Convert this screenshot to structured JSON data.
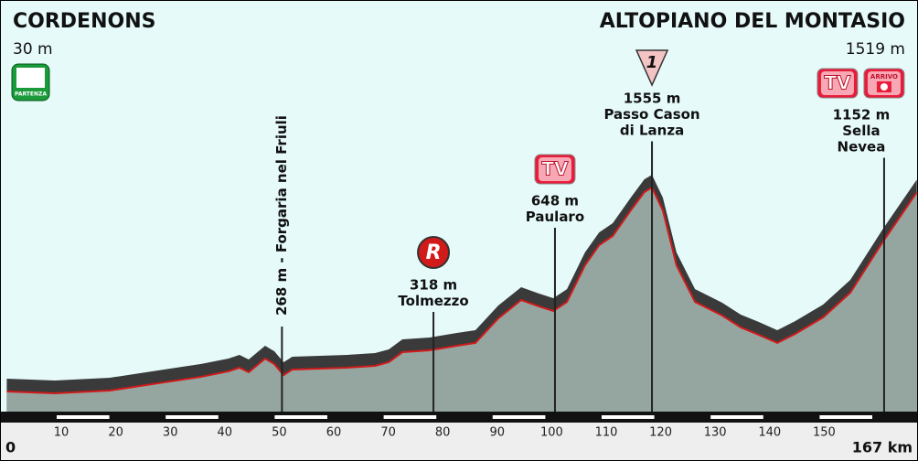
{
  "chart_data": {
    "type": "area",
    "start": {
      "name": "CORDENONS",
      "elevation": "30 m",
      "badge": "PARTENZA"
    },
    "finish": {
      "name": "ALTOPIANO DEL MONTASIO",
      "elevation": "1519 m"
    },
    "x": [
      0,
      8.8,
      18.9,
      29.0,
      35.7,
      40.7,
      42.7,
      44.4,
      47.4,
      49.1,
      50.8,
      52.4,
      62.5,
      67.6,
      70.1,
      72.6,
      77.6,
      82.6,
      86.0,
      90.2,
      94.4,
      97.7,
      100.3,
      102.8,
      106.1,
      108.7,
      111.2,
      114.5,
      117.0,
      118.4,
      120.4,
      122.9,
      126.3,
      131.3,
      134.7,
      138.0,
      141.4,
      144.7,
      149.8,
      154.8,
      160.7,
      167
    ],
    "values": [
      30,
      16,
      37,
      99,
      140,
      181,
      208,
      174,
      276,
      235,
      153,
      194,
      208,
      222,
      249,
      324,
      338,
      372,
      393,
      577,
      714,
      666,
      632,
      700,
      974,
      1124,
      1193,
      1384,
      1521,
      1555,
      1384,
      974,
      700,
      598,
      509,
      454,
      393,
      461,
      584,
      769,
      1145,
      1519
    ],
    "color": "#d11a1a",
    "fill": "#95a5a0",
    "shadow": "#3a3a3a",
    "xlim": [
      0,
      167
    ],
    "ylim": [
      0,
      1600
    ],
    "xticks": [
      0,
      10,
      20,
      30,
      40,
      50,
      60,
      70,
      80,
      90,
      100,
      110,
      120,
      130,
      140,
      150,
      {
        "value": 167,
        "label": "167 km"
      }
    ],
    "annotations": [
      {
        "x": 50.5,
        "lines": [
          "268 m - Forgaria nel Friuli"
        ],
        "icons": []
      },
      {
        "x": 78.3,
        "lines": [
          "318 m",
          "Tolmezzo"
        ],
        "icons": [
          "R"
        ]
      },
      {
        "x": 100.6,
        "lines": [
          "648 m",
          "Paularo"
        ],
        "icons": [
          "TV"
        ]
      },
      {
        "x": 118.4,
        "lines": [
          "1555 m",
          "Passo Cason",
          "di Lanza"
        ],
        "icons": [
          "1"
        ]
      },
      {
        "x": 161,
        "lines": [
          "1152 m",
          "Sella",
          "Nevea"
        ],
        "icons": [
          "TV",
          "ARRIVO"
        ]
      }
    ]
  }
}
